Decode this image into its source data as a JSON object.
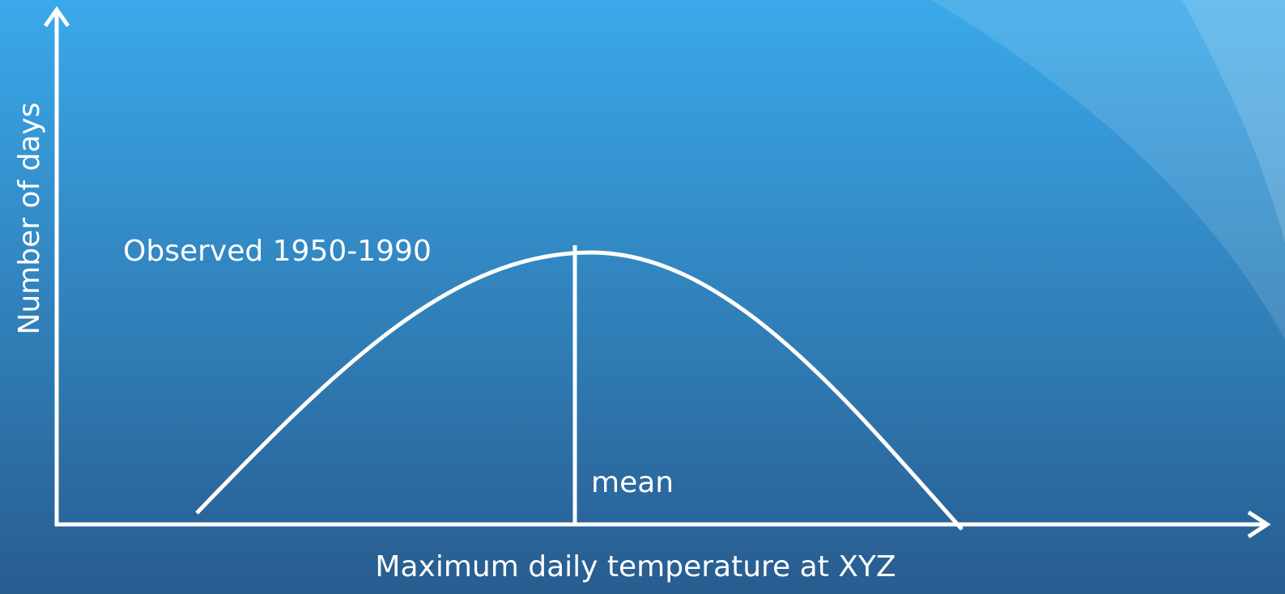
{
  "diagram": {
    "y_axis_label": "Number of days",
    "x_axis_label": "Maximum daily temperature at XYZ",
    "curve_label": "Observed 1950-1990",
    "mean_label": "mean"
  }
}
